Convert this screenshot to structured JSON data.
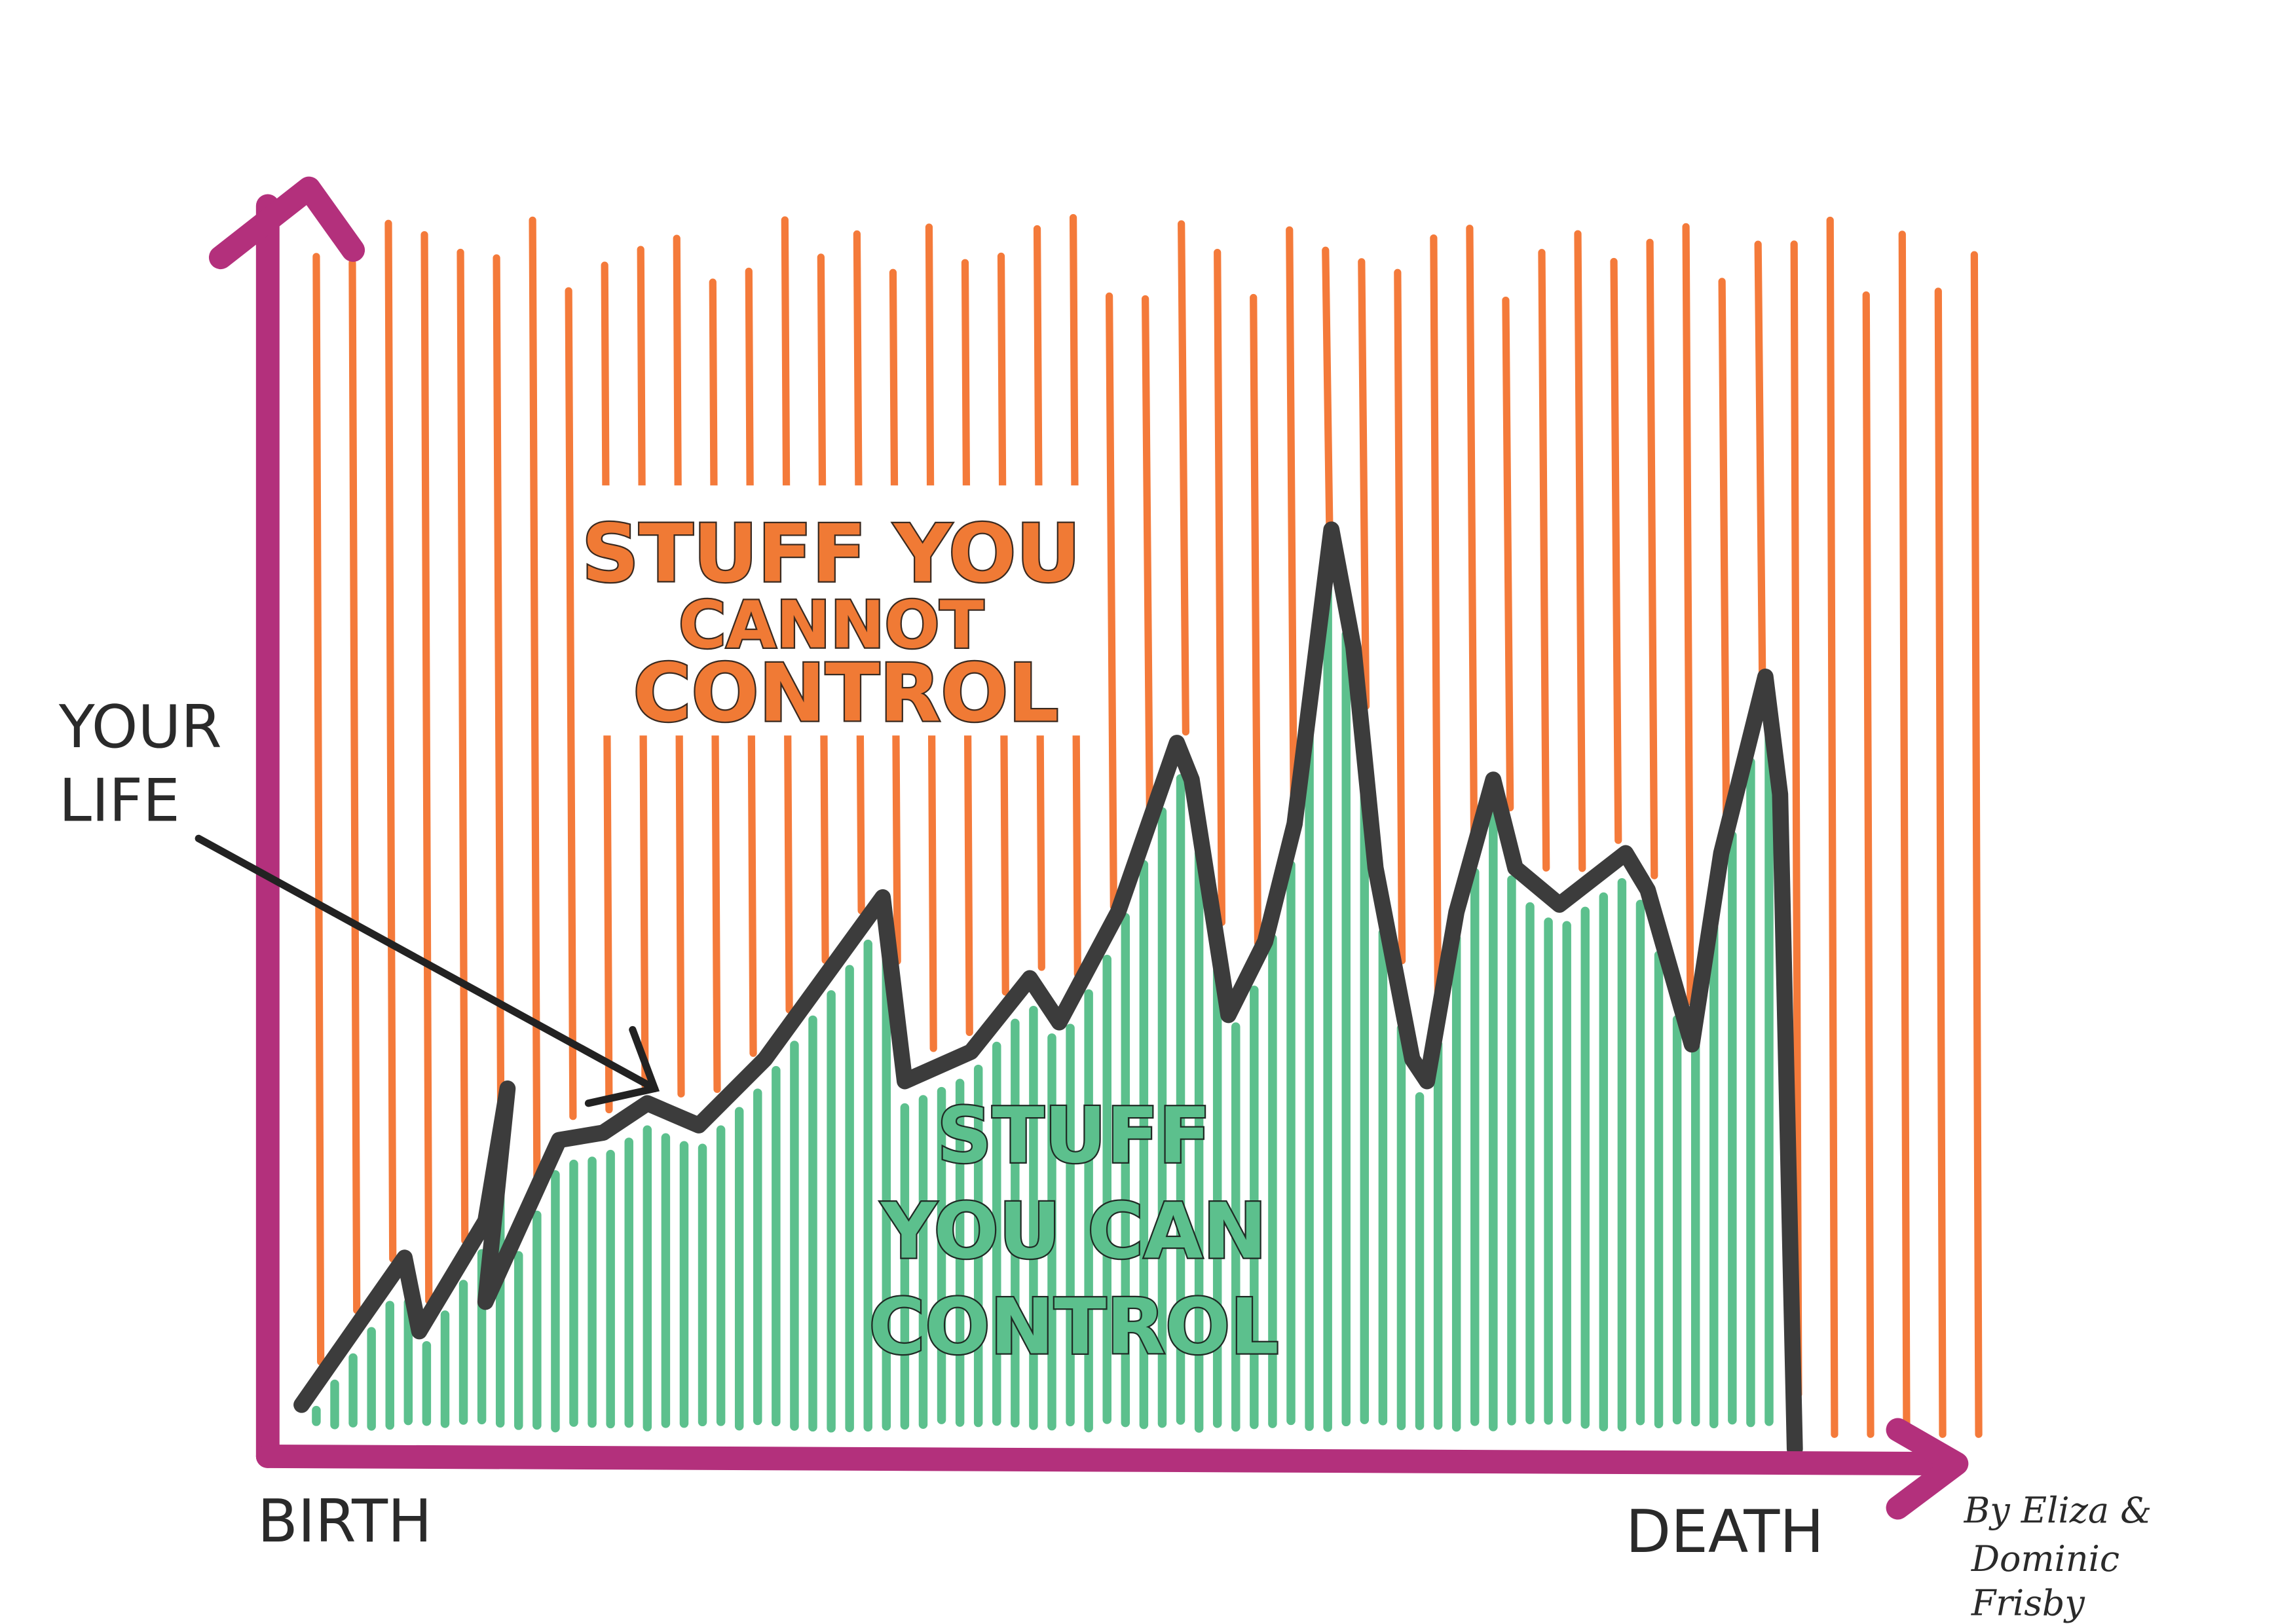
{
  "labels": {
    "cannot_control": [
      "STUFF YOU",
      "CANNOT",
      "CONTROL"
    ],
    "can_control": [
      "STUFF",
      "YOU CAN",
      "CONTROL"
    ],
    "your_life": [
      "YOUR",
      "LIFE"
    ],
    "birth": "BIRTH",
    "death": "DEATH",
    "credit": [
      "By Eliza &",
      "Dominic",
      "Frisby"
    ]
  }
}
